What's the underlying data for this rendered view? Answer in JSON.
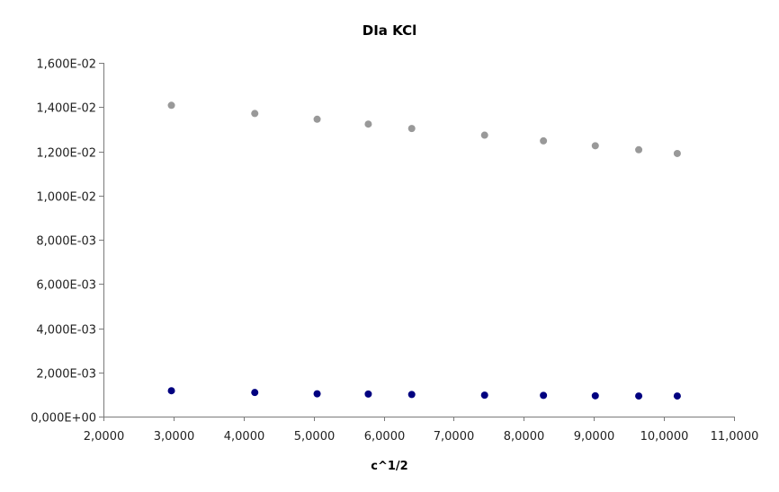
{
  "chart_data": {
    "type": "scatter",
    "title": "DIa KCl",
    "xlabel": "c^1/2",
    "ylabel": "",
    "xlim": [
      2.0,
      11.0
    ],
    "ylim": [
      0.0,
      0.016
    ],
    "grid": false,
    "legend": "none",
    "x_ticks": [
      "2,0000",
      "3,0000",
      "4,0000",
      "5,0000",
      "6,0000",
      "7,0000",
      "8,0000",
      "9,0000",
      "10,0000",
      "11,0000"
    ],
    "x_tick_values": [
      2,
      3,
      4,
      5,
      6,
      7,
      8,
      9,
      10,
      11
    ],
    "y_ticks": [
      "0,000E+00",
      "2,000E-03",
      "4,000E-03",
      "6,000E-03",
      "8,000E-03",
      "1,000E-02",
      "1,200E-02",
      "1,400E-02",
      "1,600E-02"
    ],
    "y_tick_values": [
      0,
      0.002,
      0.004,
      0.006,
      0.008,
      0.01,
      0.012,
      0.014,
      0.016
    ],
    "series": [
      {
        "color": "#999999",
        "x": [
          2.97,
          4.16,
          5.05,
          5.78,
          6.4,
          7.44,
          8.28,
          9.02,
          9.64,
          10.19
        ],
        "y": [
          0.01408,
          0.01371,
          0.01345,
          0.01323,
          0.01303,
          0.01273,
          0.01247,
          0.01225,
          0.01207,
          0.0119
        ]
      },
      {
        "color": "#000080",
        "x": [
          2.97,
          4.16,
          5.05,
          5.78,
          6.4,
          7.44,
          8.28,
          9.02,
          9.64,
          10.19
        ],
        "y": [
          0.00117,
          0.00109,
          0.00103,
          0.00102,
          0.001,
          0.00097,
          0.00096,
          0.00094,
          0.00093,
          0.00093
        ]
      }
    ]
  }
}
